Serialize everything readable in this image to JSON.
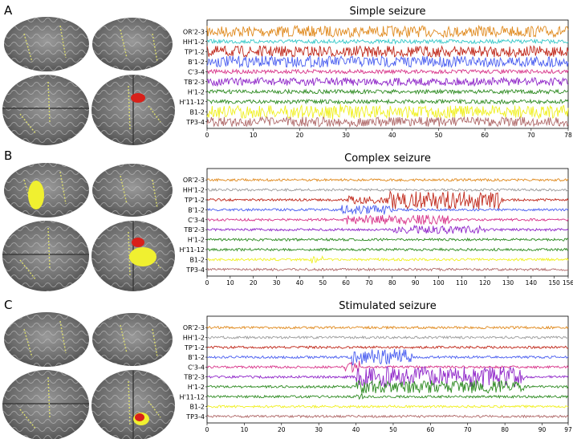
{
  "panels": [
    {
      "letter": "A",
      "title": "Simple seizure",
      "channels": [
        "OR'2-3",
        "HH'1-2",
        "TP'1-2",
        "B'1-2",
        "C'3-4",
        "TB'2-3",
        "H'1-2",
        "H'11-12",
        "B1-2",
        "TP3-4"
      ],
      "colors": [
        "#e08a1e",
        "#35c8c8",
        "#c0281a",
        "#4a5ef0",
        "#d8358a",
        "#8e24c8",
        "#2e8b22",
        "#2e8b22",
        "#f0f020",
        "#b06a6a"
      ],
      "x_ticks": [
        "0",
        "10",
        "20",
        "30",
        "40",
        "50",
        "60",
        "70",
        "78"
      ],
      "xlim": [
        0,
        78
      ]
    },
    {
      "letter": "B",
      "title": "Complex seizure",
      "channels": [
        "OR'2-3",
        "HH'1-2",
        "TP'1-2",
        "B'1-2",
        "C'3-4",
        "TB'2-3",
        "H'1-2",
        "H'11-12",
        "B1-2",
        "TP3-4"
      ],
      "colors": [
        "#e08a1e",
        "#9b9b9b",
        "#c0281a",
        "#4a5ef0",
        "#d8358a",
        "#8e24c8",
        "#2e8b22",
        "#2e8b22",
        "#f0f020",
        "#b06a6a"
      ],
      "x_ticks": [
        "0",
        "10",
        "20",
        "30",
        "40",
        "50",
        "60",
        "70",
        "80",
        "90",
        "100",
        "110",
        "120",
        "130",
        "140",
        "150",
        "156"
      ],
      "xlim": [
        0,
        156
      ]
    },
    {
      "letter": "C",
      "title": "Stimulated seizure",
      "channels": [
        "OR'2-3",
        "HH'1-2",
        "TP'1-2",
        "B'1-2",
        "C'3-4",
        "TB'2-3",
        "H'1-2",
        "H'11-12",
        "B1-2",
        "TP3-4"
      ],
      "colors": [
        "#e08a1e",
        "#9b9b9b",
        "#c0281a",
        "#4a5ef0",
        "#d8358a",
        "#8e24c8",
        "#2e8b22",
        "#2e8b22",
        "#f0f020",
        "#b06a6a"
      ],
      "x_ticks": [
        "0",
        "10",
        "20",
        "30",
        "40",
        "50",
        "60",
        "70",
        "80",
        "90",
        "97"
      ],
      "xlim": [
        0,
        97
      ]
    }
  ]
}
